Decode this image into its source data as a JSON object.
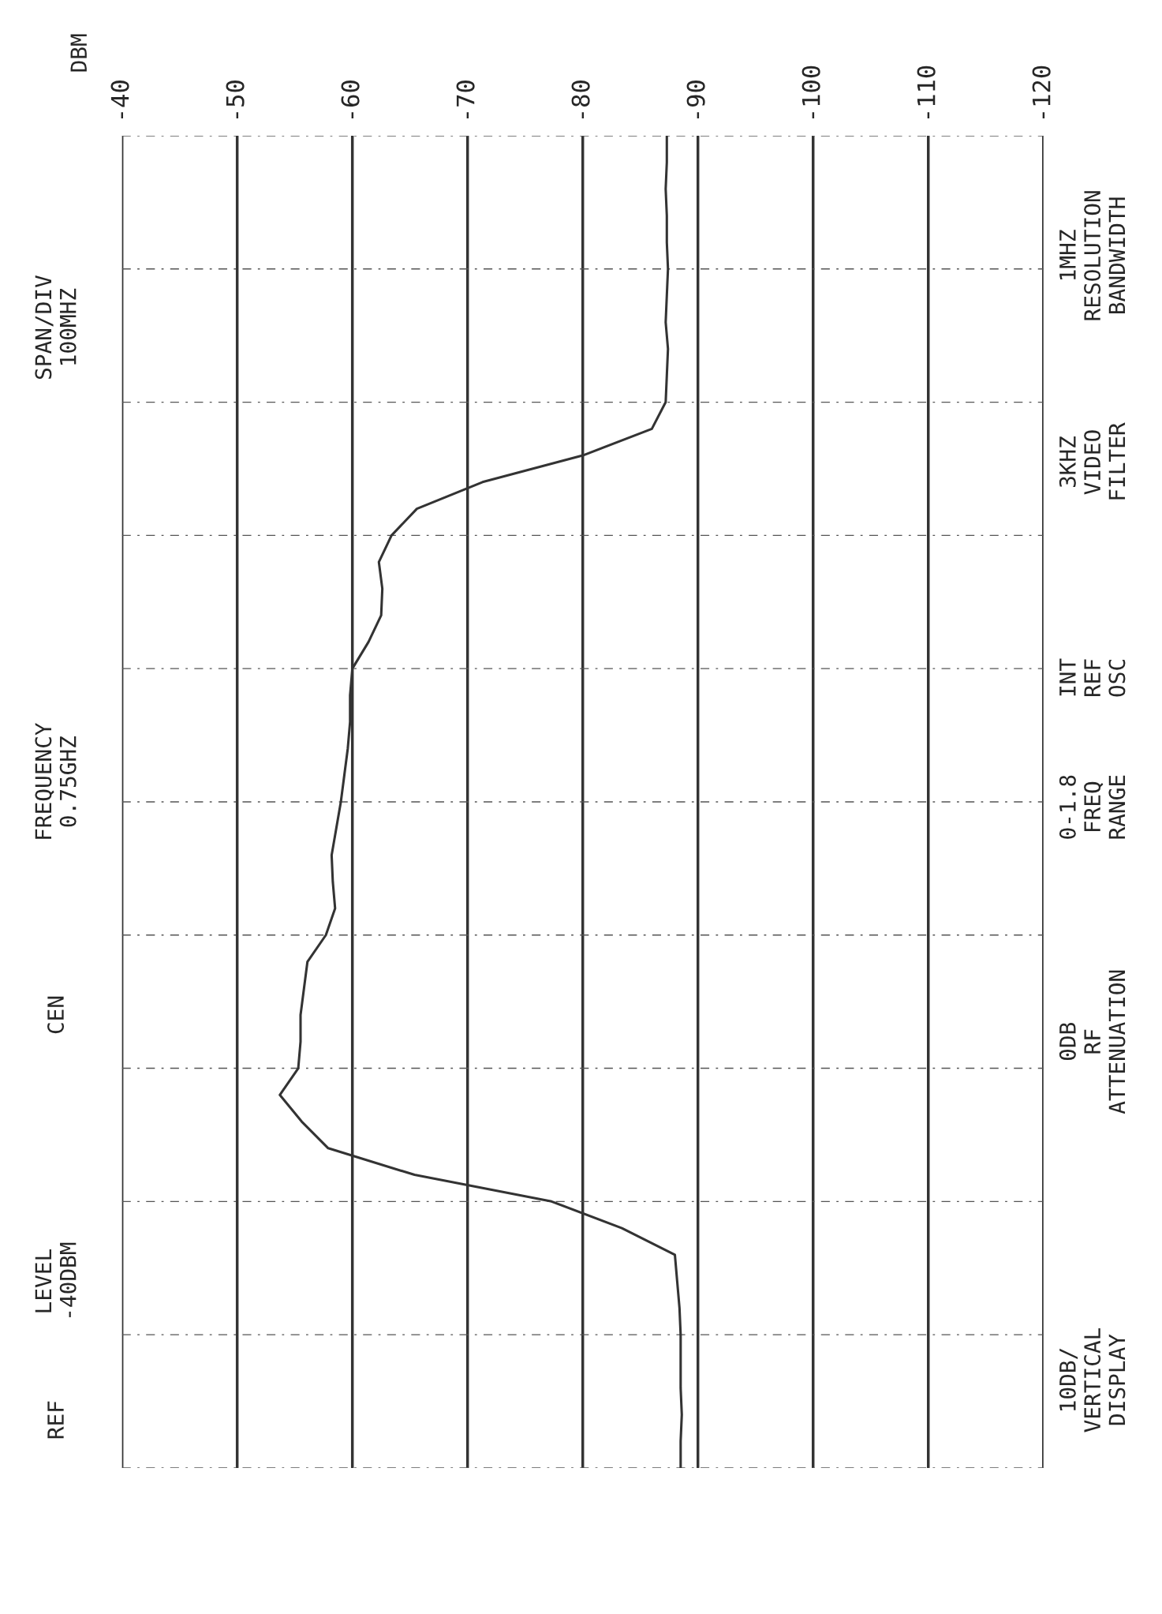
{
  "chart_data": {
    "type": "line",
    "orientation": "horizontal",
    "categories": [
      null,
      null,
      null,
      null,
      null,
      null,
      null,
      null,
      null,
      null,
      null,
      null,
      null,
      null,
      null,
      null,
      null,
      null,
      null,
      null,
      null,
      null,
      null,
      null,
      null,
      null,
      null,
      null,
      null,
      null,
      null,
      null,
      null,
      null,
      null,
      null,
      null,
      null,
      null,
      null,
      null,
      null,
      null,
      null,
      null,
      null,
      null,
      null,
      null,
      null,
      null
    ],
    "series": [
      {
        "color": "#333333",
        "values": [
          -87.3,
          -87.3,
          -87.2,
          -87.3,
          -87.3,
          -87.4,
          -87.3,
          -87.2,
          -87.4,
          -87.3,
          -87.2,
          -86,
          -80,
          -71.3,
          -65.6,
          -63.4,
          -62.3,
          -62.6,
          -62.5,
          -61.4,
          -60,
          -59.8,
          -59.8,
          -59.6,
          -59.3,
          -59,
          -58.6,
          -58.2,
          -58.3,
          -58.5,
          -57.7,
          -56.1,
          -55.8,
          -55.5,
          -55.5,
          -55.3,
          -53.7,
          -55.6,
          -57.9,
          -65.4,
          -77.3,
          -83.4,
          -88,
          -88.2,
          -88.4,
          -88.5,
          -88.5,
          -88.5,
          -88.6,
          -88.5,
          -88.5
        ]
      }
    ],
    "xlim": [
      -40,
      -120
    ],
    "xticks": [
      -40,
      -50,
      -60,
      -70,
      -80,
      -90,
      -100,
      -110,
      -120
    ],
    "grid": true,
    "tick_labels": "x",
    "marker": "none",
    "line_style": "solid",
    "annotations": [
      "REF",
      "LEVEL\n-40DBM",
      "CEN",
      "FREQUENCY\n0.75GHZ",
      "SPAN/DIV\n100MHZ",
      "10DB/\nVERTICAL\nDISPLAY",
      "0DB\nRF\nATTENUATION",
      "0-1.8\nFREQ\nRANGE",
      "INT\nREF\nOSC",
      "3KHZ\nVIDEO\nFILTER",
      "1MHZ\nRESOLUTION\nBANDWIDTH",
      "DBM"
    ]
  }
}
